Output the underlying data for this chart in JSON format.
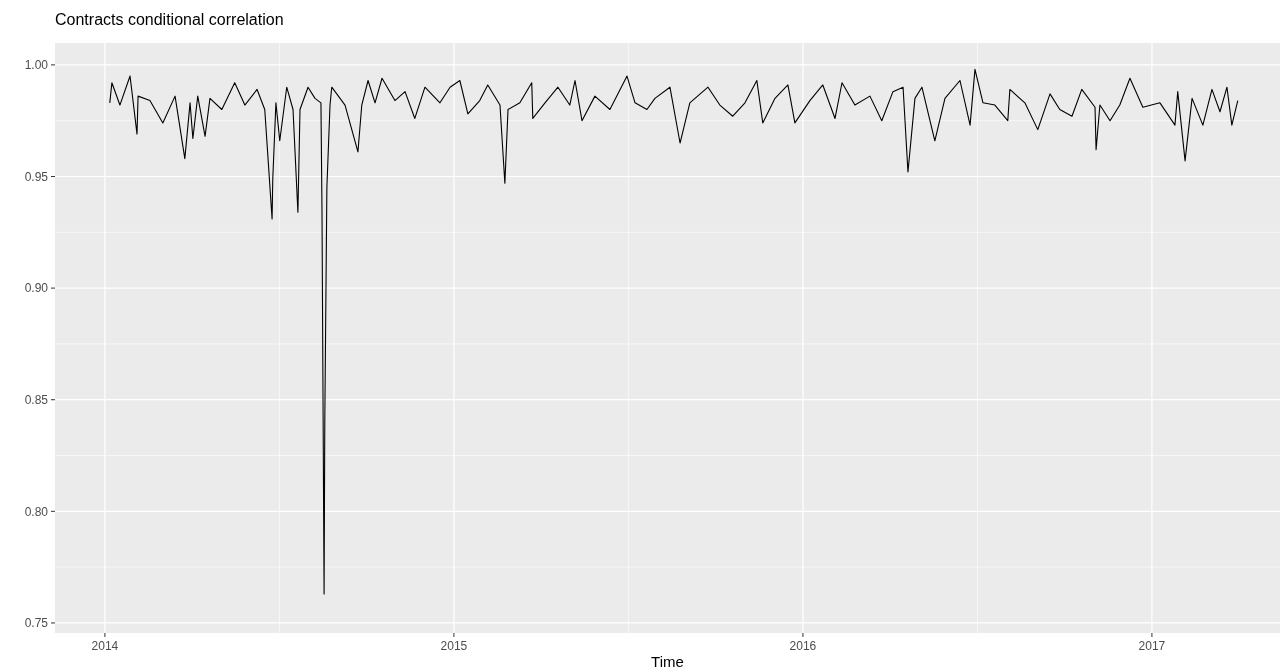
{
  "chart_data": {
    "type": "line",
    "title": "Contracts conditional correlation",
    "xlabel": "Time",
    "x": [
      2014.014,
      2014.02,
      2014.043,
      2014.072,
      2014.092,
      2014.095,
      2014.129,
      2014.166,
      2014.201,
      2014.229,
      2014.244,
      2014.252,
      2014.266,
      2014.287,
      2014.301,
      2014.335,
      2014.372,
      2014.401,
      2014.436,
      2014.458,
      2014.479,
      2014.481,
      2014.49,
      2014.501,
      2014.521,
      2014.539,
      2014.553,
      2014.559,
      2014.582,
      2014.602,
      2014.619,
      2014.622,
      2014.628,
      2014.63,
      2014.636,
      2014.645,
      2014.65,
      2014.688,
      2014.725,
      2014.736,
      2014.754,
      2014.774,
      2014.794,
      2014.831,
      2014.86,
      2014.888,
      2014.917,
      2014.96,
      2014.989,
      2015.017,
      2015.04,
      2015.074,
      2015.097,
      2015.132,
      2015.146,
      2015.155,
      2015.189,
      2015.223,
      2015.226,
      2015.261,
      2015.298,
      2015.332,
      2015.347,
      2015.367,
      2015.404,
      2015.447,
      2015.496,
      2015.519,
      2015.553,
      2015.576,
      2015.619,
      2015.648,
      2015.676,
      2015.728,
      2015.762,
      2015.799,
      2015.834,
      2015.868,
      2015.885,
      2015.92,
      2015.957,
      2015.977,
      2016.02,
      2016.057,
      2016.092,
      2016.112,
      2016.149,
      2016.192,
      2016.226,
      2016.258,
      2016.287,
      2016.301,
      2016.321,
      2016.341,
      2016.378,
      2016.407,
      2016.45,
      2016.479,
      2016.493,
      2016.516,
      2016.55,
      2016.587,
      2016.593,
      2016.636,
      2016.673,
      2016.708,
      2016.736,
      2016.771,
      2016.799,
      2016.837,
      2016.84,
      2016.851,
      2016.88,
      2016.908,
      2016.937,
      2016.974,
      2017.023,
      2017.066,
      2017.074,
      2017.095,
      2017.115,
      2017.146,
      2017.172,
      2017.195,
      2017.215,
      2017.229,
      2017.246
    ],
    "series": [
      {
        "color": "#000000",
        "values": [
          0.983,
          0.992,
          0.982,
          0.995,
          0.969,
          0.986,
          0.984,
          0.974,
          0.986,
          0.958,
          0.983,
          0.967,
          0.986,
          0.968,
          0.985,
          0.98,
          0.992,
          0.982,
          0.989,
          0.98,
          0.931,
          0.949,
          0.983,
          0.966,
          0.99,
          0.98,
          0.934,
          0.98,
          0.99,
          0.985,
          0.983,
          0.935,
          0.763,
          0.839,
          0.945,
          0.982,
          0.99,
          0.982,
          0.961,
          0.982,
          0.993,
          0.983,
          0.994,
          0.984,
          0.988,
          0.976,
          0.99,
          0.983,
          0.99,
          0.993,
          0.978,
          0.984,
          0.991,
          0.982,
          0.947,
          0.98,
          0.983,
          0.992,
          0.976,
          0.983,
          0.99,
          0.982,
          0.993,
          0.975,
          0.986,
          0.98,
          0.995,
          0.983,
          0.98,
          0.985,
          0.99,
          0.965,
          0.983,
          0.99,
          0.982,
          0.977,
          0.983,
          0.993,
          0.974,
          0.985,
          0.991,
          0.974,
          0.984,
          0.991,
          0.976,
          0.992,
          0.982,
          0.986,
          0.975,
          0.988,
          0.99,
          0.952,
          0.985,
          0.99,
          0.966,
          0.985,
          0.993,
          0.973,
          0.998,
          0.983,
          0.982,
          0.975,
          0.989,
          0.983,
          0.971,
          0.987,
          0.98,
          0.977,
          0.989,
          0.981,
          0.962,
          0.982,
          0.975,
          0.982,
          0.994,
          0.981,
          0.983,
          0.973,
          0.988,
          0.957,
          0.985,
          0.973,
          0.989,
          0.979,
          0.99,
          0.973,
          0.984
        ]
      }
    ],
    "xlim": [
      2013.857,
      2017.367
    ],
    "xticks": [
      2014,
      2015,
      2016,
      2017
    ],
    "ylim": [
      0.7455,
      1.0098
    ],
    "yticks": [
      {
        "value": 0.75,
        "label": "0.75"
      },
      {
        "value": 0.8,
        "label": "0.80"
      },
      {
        "value": 0.85,
        "label": "0.85"
      },
      {
        "value": 0.9,
        "label": "0.90"
      },
      {
        "value": 0.95,
        "label": "0.95"
      },
      {
        "value": 1,
        "label": "1.00"
      }
    ],
    "grid": true,
    "line_style": "solid",
    "marker": "none"
  }
}
